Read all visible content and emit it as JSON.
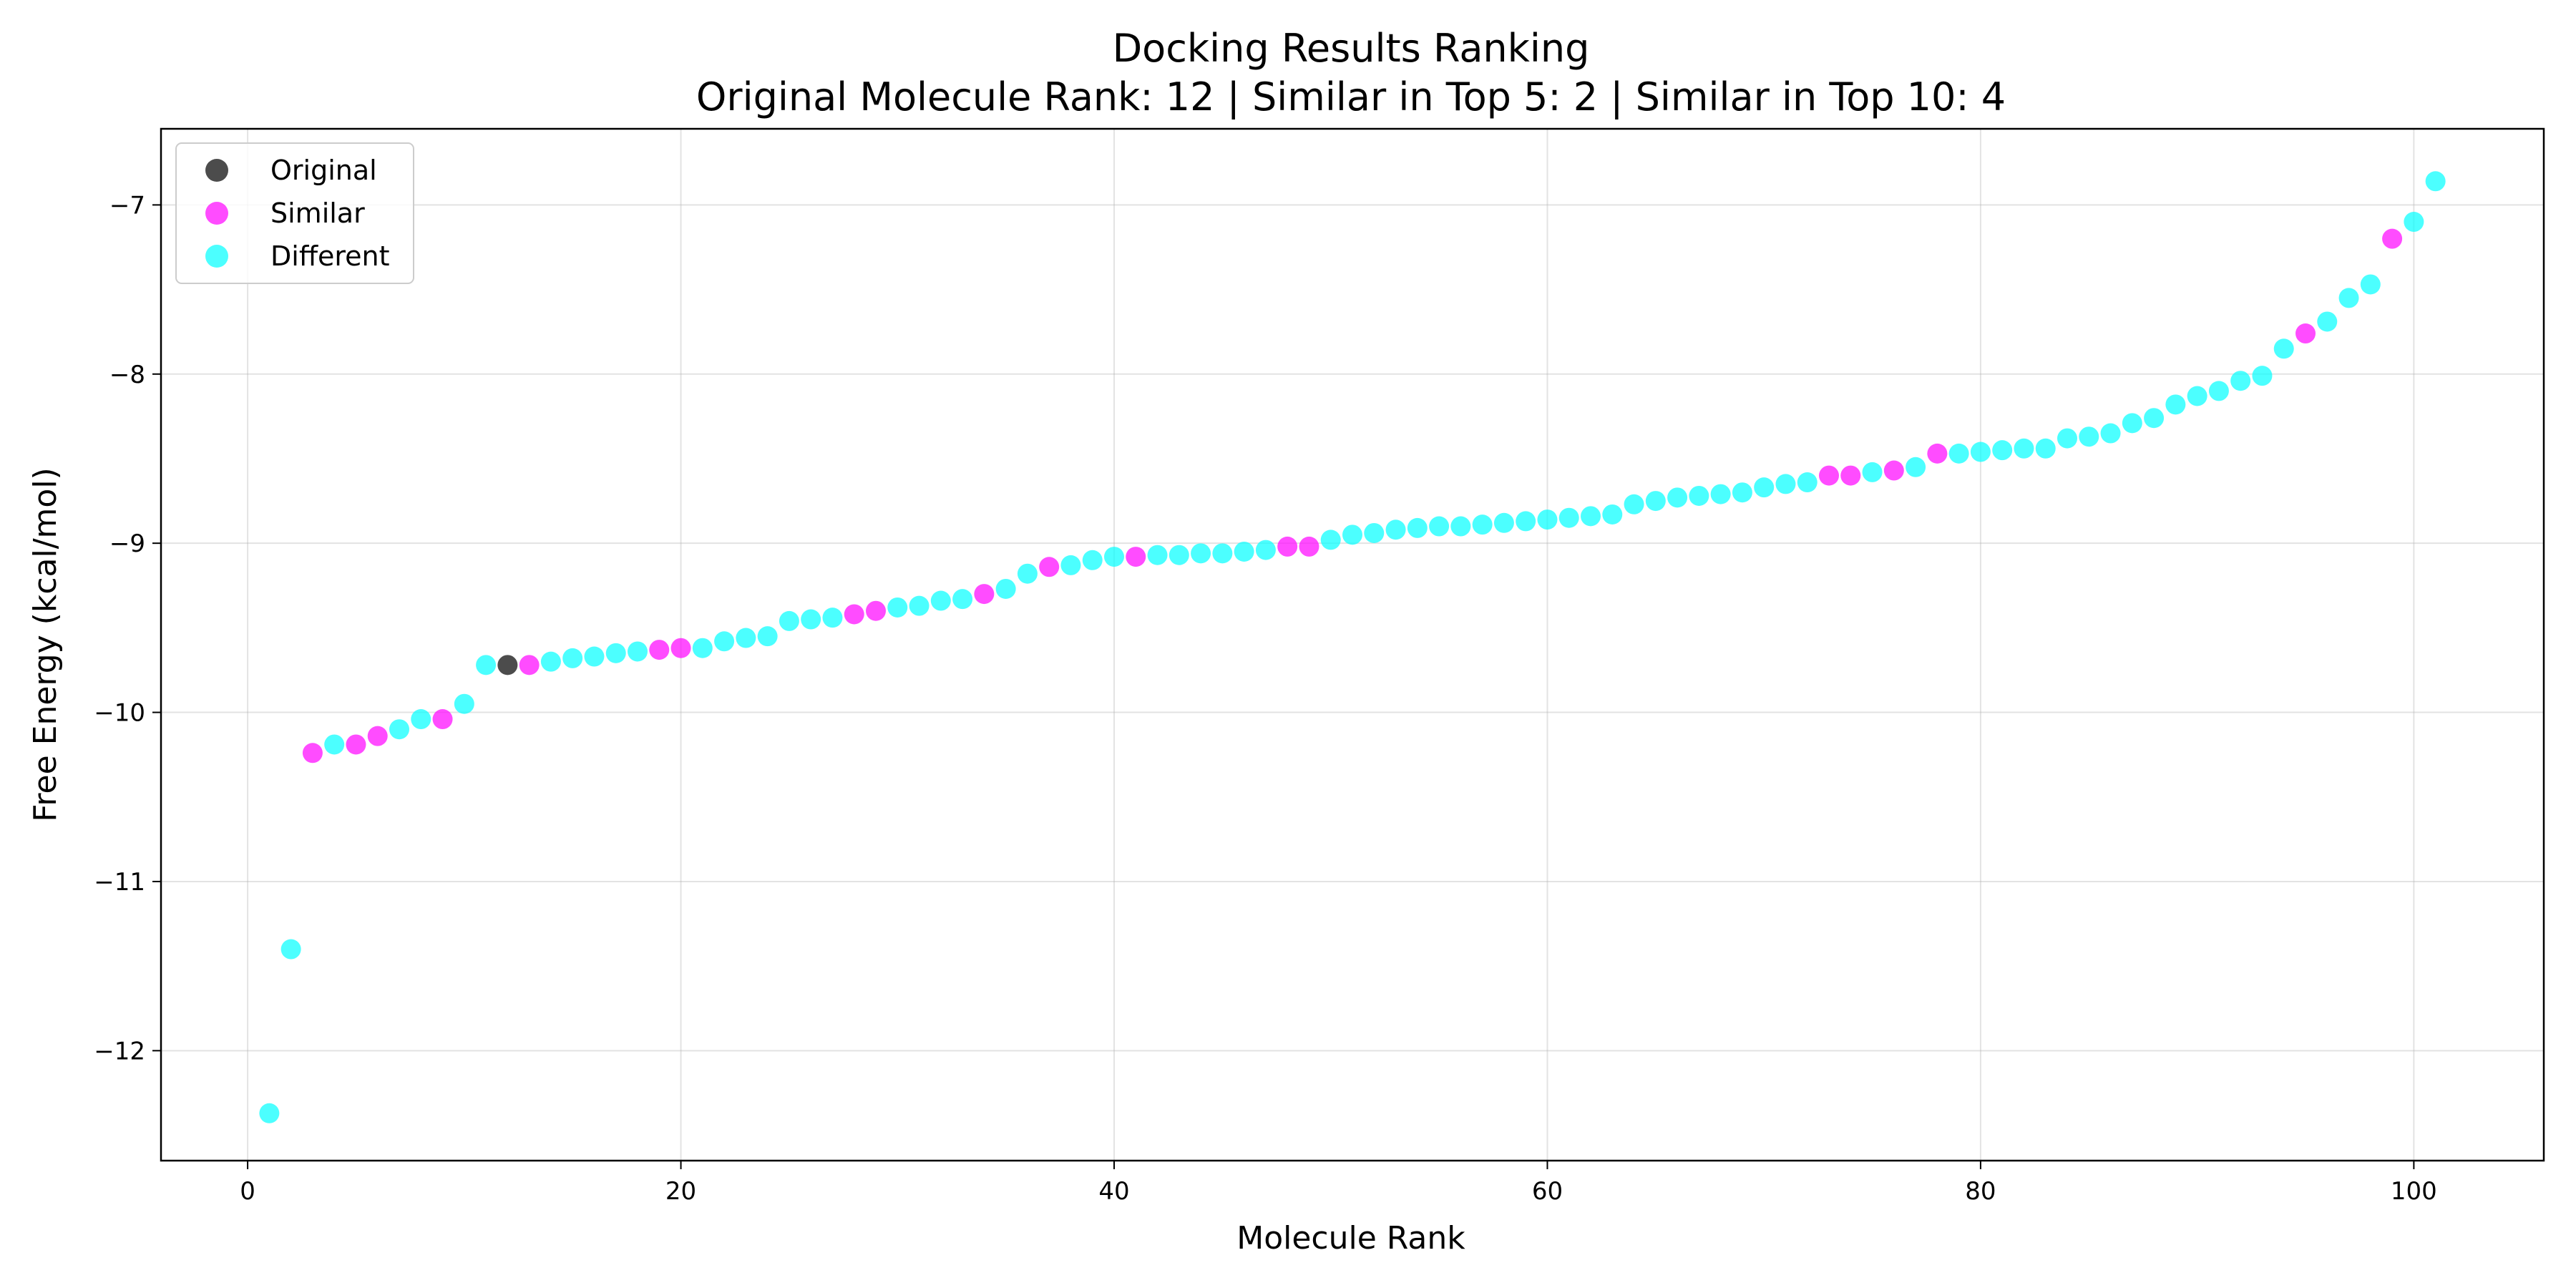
{
  "chart_data": {
    "type": "scatter",
    "title": "Docking Results Ranking",
    "subtitle": "Original Molecule Rank: 12 | Similar in Top 5: 2 | Similar in Top 10: 4",
    "xlabel": "Molecule Rank",
    "ylabel": "Free Energy (kcal/mol)",
    "xlim": [
      -4,
      106
    ],
    "ylim": [
      -12.65,
      -6.55
    ],
    "xticks": [
      0,
      20,
      40,
      60,
      80,
      100
    ],
    "yticks": [
      -12,
      -11,
      -10,
      -9,
      -8,
      -7
    ],
    "xtick_labels": [
      "0",
      "20",
      "40",
      "60",
      "80",
      "100"
    ],
    "ytick_labels": [
      "−12",
      "−11",
      "−10",
      "−9",
      "−8",
      "−7"
    ],
    "grid": true,
    "legend_position": "top-left",
    "colors": {
      "Original": "#000000",
      "Similar": "#ff00ff",
      "Different": "#00ffff"
    },
    "series": [
      {
        "name": "Original",
        "points": [
          [
            12,
            -9.72
          ]
        ]
      },
      {
        "name": "Similar",
        "points": [
          [
            3,
            -10.24
          ],
          [
            5,
            -10.19
          ],
          [
            6,
            -10.14
          ],
          [
            9,
            -10.04
          ],
          [
            13,
            -9.72
          ],
          [
            19,
            -9.63
          ],
          [
            20,
            -9.62
          ],
          [
            28,
            -9.42
          ],
          [
            29,
            -9.4
          ],
          [
            34,
            -9.3
          ],
          [
            37,
            -9.14
          ],
          [
            41,
            -9.08
          ],
          [
            48,
            -9.02
          ],
          [
            49,
            -9.02
          ],
          [
            73,
            -8.6
          ],
          [
            74,
            -8.6
          ],
          [
            76,
            -8.57
          ],
          [
            78,
            -8.47
          ],
          [
            95,
            -7.76
          ],
          [
            99,
            -7.2
          ]
        ]
      },
      {
        "name": "Different",
        "points": [
          [
            1,
            -12.37
          ],
          [
            2,
            -11.4
          ],
          [
            4,
            -10.19
          ],
          [
            7,
            -10.1
          ],
          [
            8,
            -10.04
          ],
          [
            10,
            -9.95
          ],
          [
            11,
            -9.72
          ],
          [
            14,
            -9.7
          ],
          [
            15,
            -9.68
          ],
          [
            16,
            -9.67
          ],
          [
            17,
            -9.65
          ],
          [
            18,
            -9.64
          ],
          [
            21,
            -9.62
          ],
          [
            22,
            -9.58
          ],
          [
            23,
            -9.56
          ],
          [
            24,
            -9.55
          ],
          [
            25,
            -9.46
          ],
          [
            26,
            -9.45
          ],
          [
            27,
            -9.44
          ],
          [
            30,
            -9.38
          ],
          [
            31,
            -9.37
          ],
          [
            32,
            -9.34
          ],
          [
            33,
            -9.33
          ],
          [
            35,
            -9.27
          ],
          [
            36,
            -9.18
          ],
          [
            38,
            -9.13
          ],
          [
            39,
            -9.1
          ],
          [
            40,
            -9.08
          ],
          [
            42,
            -9.07
          ],
          [
            43,
            -9.07
          ],
          [
            44,
            -9.06
          ],
          [
            45,
            -9.06
          ],
          [
            46,
            -9.05
          ],
          [
            47,
            -9.04
          ],
          [
            50,
            -8.98
          ],
          [
            51,
            -8.95
          ],
          [
            52,
            -8.94
          ],
          [
            53,
            -8.92
          ],
          [
            54,
            -8.91
          ],
          [
            55,
            -8.9
          ],
          [
            56,
            -8.9
          ],
          [
            57,
            -8.89
          ],
          [
            58,
            -8.88
          ],
          [
            59,
            -8.87
          ],
          [
            60,
            -8.86
          ],
          [
            61,
            -8.85
          ],
          [
            62,
            -8.84
          ],
          [
            63,
            -8.83
          ],
          [
            64,
            -8.77
          ],
          [
            65,
            -8.75
          ],
          [
            66,
            -8.73
          ],
          [
            67,
            -8.72
          ],
          [
            68,
            -8.71
          ],
          [
            69,
            -8.7
          ],
          [
            70,
            -8.67
          ],
          [
            71,
            -8.65
          ],
          [
            72,
            -8.64
          ],
          [
            75,
            -8.58
          ],
          [
            77,
            -8.55
          ],
          [
            79,
            -8.47
          ],
          [
            80,
            -8.46
          ],
          [
            81,
            -8.45
          ],
          [
            82,
            -8.44
          ],
          [
            83,
            -8.44
          ],
          [
            84,
            -8.38
          ],
          [
            85,
            -8.37
          ],
          [
            86,
            -8.35
          ],
          [
            87,
            -8.29
          ],
          [
            88,
            -8.26
          ],
          [
            89,
            -8.18
          ],
          [
            90,
            -8.13
          ],
          [
            91,
            -8.1
          ],
          [
            92,
            -8.04
          ],
          [
            93,
            -8.01
          ],
          [
            94,
            -7.85
          ],
          [
            96,
            -7.69
          ],
          [
            97,
            -7.55
          ],
          [
            98,
            -7.47
          ],
          [
            100,
            -7.1
          ],
          [
            101,
            -6.86
          ]
        ]
      }
    ]
  }
}
